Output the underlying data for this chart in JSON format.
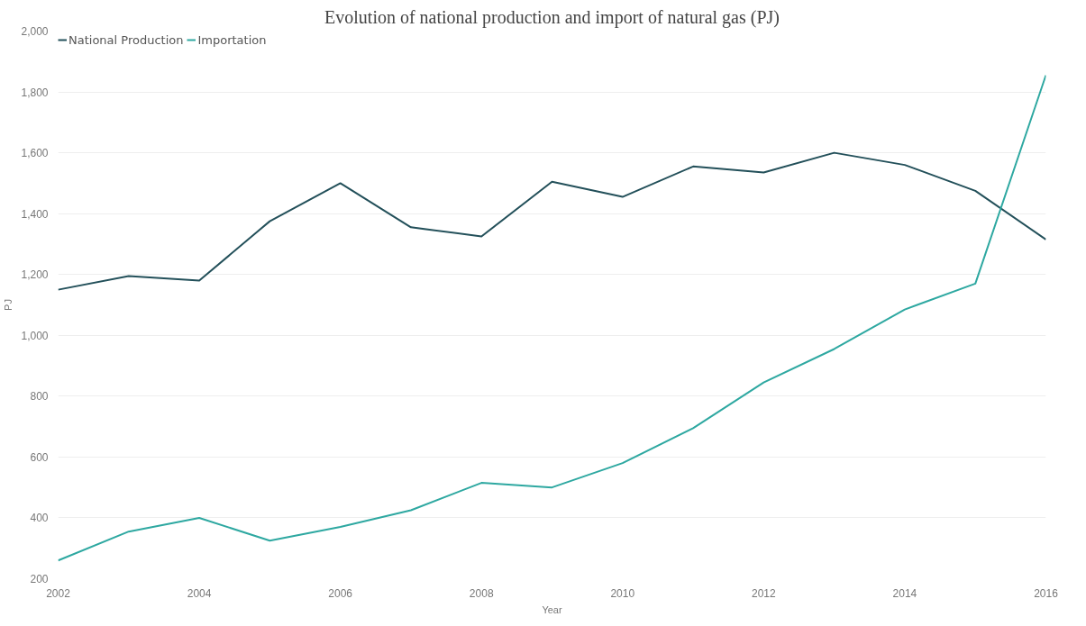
{
  "chart_data": {
    "type": "line",
    "title": "Evolution of national production and import of natural gas (PJ)",
    "xlabel": "Year",
    "ylabel": "PJ",
    "x": [
      2002,
      2003,
      2004,
      2005,
      2006,
      2007,
      2008,
      2009,
      2010,
      2011,
      2012,
      2013,
      2014,
      2015,
      2016
    ],
    "series": [
      {
        "name": "National Production",
        "color": "#23505a",
        "values": [
          1150,
          1195,
          1180,
          1375,
          1500,
          1355,
          1325,
          1505,
          1455,
          1555,
          1535,
          1600,
          1560,
          1475,
          1315
        ]
      },
      {
        "name": "Importation",
        "color": "#2ea8a1",
        "values": [
          260,
          355,
          400,
          325,
          370,
          425,
          515,
          500,
          580,
          695,
          845,
          955,
          1085,
          1170,
          1855
        ]
      }
    ],
    "xlim": [
      2002,
      2016
    ],
    "xticks": [
      2002,
      2004,
      2006,
      2008,
      2010,
      2012,
      2014,
      2016
    ],
    "ylim": [
      200,
      2000
    ],
    "yticks": [
      {
        "value": 200,
        "label": "200"
      },
      {
        "value": 400,
        "label": "400"
      },
      {
        "value": 600,
        "label": "600"
      },
      {
        "value": 800,
        "label": "800"
      },
      {
        "value": 1000,
        "label": "1,000"
      },
      {
        "value": 1200,
        "label": "1,200"
      },
      {
        "value": 1400,
        "label": "1,400"
      },
      {
        "value": 1600,
        "label": "1,600"
      },
      {
        "value": 1800,
        "label": "1,800"
      },
      {
        "value": 2000,
        "label": "2,000"
      }
    ],
    "grid": "y",
    "legend": "top left",
    "line_style": "solid"
  }
}
